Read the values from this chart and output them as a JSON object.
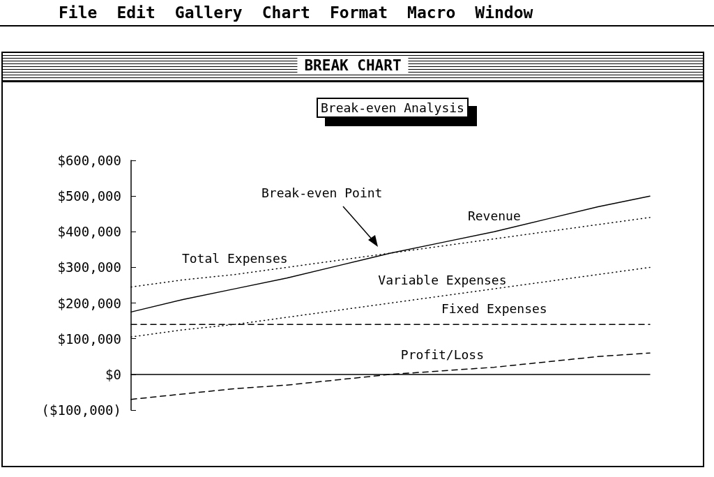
{
  "chart_data": {
    "type": "line",
    "title": "Break-even Analysis",
    "subtitle": "BREAK CHART",
    "annotations": [
      "Break-even Point",
      "File",
      "Edit",
      "Gallery",
      "Chart",
      "Format",
      "Macro",
      "Window"
    ],
    "categories": [
      null,
      null,
      null,
      null,
      null,
      null,
      null,
      null,
      null,
      null,
      null
    ],
    "series": [
      {
        "name": "Revenue",
        "color": "#000000",
        "line_style": "solid",
        "values": [
          175000,
          210000,
          240000,
          270000,
          305000,
          340000,
          370000,
          400000,
          435000,
          470000,
          500000
        ]
      },
      {
        "name": "Total Expenses",
        "color": "#000000",
        "line_style": "dotted",
        "values": [
          245000,
          265000,
          280000,
          300000,
          320000,
          340000,
          360000,
          380000,
          400000,
          420000,
          440000
        ]
      },
      {
        "name": "Variable Expenses",
        "color": "#000000",
        "line_style": "dotted",
        "values": [
          105000,
          125000,
          140000,
          160000,
          180000,
          200000,
          220000,
          240000,
          260000,
          280000,
          300000
        ]
      },
      {
        "name": "Fixed Expenses",
        "color": "#000000",
        "line_style": "dashed",
        "values": [
          140000,
          140000,
          140000,
          140000,
          140000,
          140000,
          140000,
          140000,
          140000,
          140000,
          140000
        ]
      },
      {
        "name": "Profit/Loss",
        "color": "#000000",
        "line_style": "dashed",
        "values": [
          -70000,
          -55000,
          -40000,
          -30000,
          -15000,
          0,
          10000,
          20000,
          35000,
          50000,
          60000
        ]
      }
    ],
    "ylim": [
      -100000,
      600000
    ],
    "yticks": [
      {
        "value": -100000,
        "label": "($100,000)"
      },
      {
        "value": 0,
        "label": "$0"
      },
      {
        "value": 100000,
        "label": "$100,000"
      },
      {
        "value": 200000,
        "label": "$200,000"
      },
      {
        "value": 300000,
        "label": "$300,000"
      },
      {
        "value": 400000,
        "label": "$400,000"
      },
      {
        "value": 500000,
        "label": "$500,000"
      },
      {
        "value": 600000,
        "label": "$600,000"
      }
    ],
    "grid": false,
    "legend": false,
    "marker": "none"
  }
}
